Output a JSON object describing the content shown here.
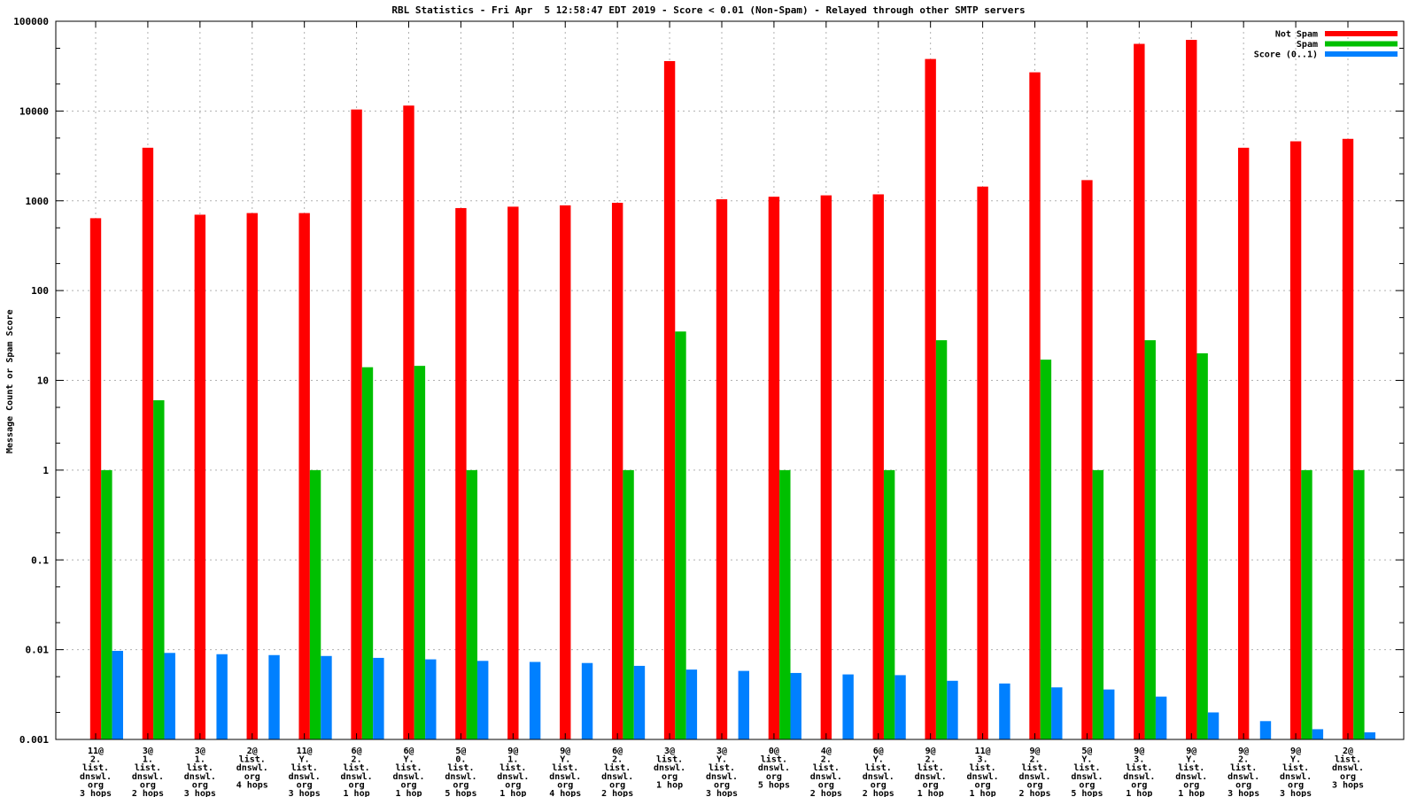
{
  "title": "RBL Statistics - Fri Apr  5 12:58:47 EDT 2019 - Score < 0.01 (Non-Spam) - Relayed through other SMTP servers",
  "chart_data": {
    "type": "bar",
    "title": "RBL Statistics - Fri Apr  5 12:58:47 EDT 2019 - Score < 0.01 (Non-Spam) - Relayed through other SMTP servers",
    "xlabel": "",
    "ylabel": "Message Count or Spam Score",
    "yscale": "log",
    "ylim": [
      0.001,
      100000
    ],
    "ytick_labels": [
      "0.001",
      "0.01",
      "0.1",
      "1",
      "10",
      "100",
      "1000",
      "10000",
      "100000"
    ],
    "ytick_values": [
      0.001,
      0.01,
      0.1,
      1,
      10,
      100,
      1000,
      10000,
      100000
    ],
    "grid": true,
    "legend_position": "top-right-inside",
    "axis_color": "#000000",
    "grid_color": "#b0b0b0",
    "categories": [
      [
        "11@",
        "2.",
        "list.",
        "dnswl.",
        "org",
        "3 hops"
      ],
      [
        "3@",
        "1.",
        "list.",
        "dnswl.",
        "org",
        "2 hops"
      ],
      [
        "3@",
        "1.",
        "list.",
        "dnswl.",
        "org",
        "3 hops"
      ],
      [
        "2@",
        "list.",
        "dnswl.",
        "org",
        "4 hops"
      ],
      [
        "11@",
        "Y.",
        "list.",
        "dnswl.",
        "org",
        "3 hops"
      ],
      [
        "6@",
        "2.",
        "list.",
        "dnswl.",
        "org",
        "1 hop"
      ],
      [
        "6@",
        "Y.",
        "list.",
        "dnswl.",
        "org",
        "1 hop"
      ],
      [
        "5@",
        "0.",
        "list.",
        "dnswl.",
        "org",
        "5 hops"
      ],
      [
        "9@",
        "1.",
        "list.",
        "dnswl.",
        "org",
        "1 hop"
      ],
      [
        "9@",
        "Y.",
        "list.",
        "dnswl.",
        "org",
        "4 hops"
      ],
      [
        "6@",
        "2.",
        "list.",
        "dnswl.",
        "org",
        "2 hops"
      ],
      [
        "3@",
        "list.",
        "dnswl.",
        "org",
        "1 hop"
      ],
      [
        "3@",
        "Y.",
        "list.",
        "dnswl.",
        "org",
        "3 hops"
      ],
      [
        "0@",
        "list.",
        "dnswl.",
        "org",
        "5 hops"
      ],
      [
        "4@",
        "2.",
        "list.",
        "dnswl.",
        "org",
        "2 hops"
      ],
      [
        "6@",
        "Y.",
        "list.",
        "dnswl.",
        "org",
        "2 hops"
      ],
      [
        "9@",
        "2.",
        "list.",
        "dnswl.",
        "org",
        "1 hop"
      ],
      [
        "11@",
        "3.",
        "list.",
        "dnswl.",
        "org",
        "1 hop"
      ],
      [
        "9@",
        "2.",
        "list.",
        "dnswl.",
        "org",
        "2 hops"
      ],
      [
        "5@",
        "Y.",
        "list.",
        "dnswl.",
        "org",
        "5 hops"
      ],
      [
        "9@",
        "3.",
        "list.",
        "dnswl.",
        "org",
        "1 hop"
      ],
      [
        "9@",
        "Y.",
        "list.",
        "dnswl.",
        "org",
        "1 hop"
      ],
      [
        "9@",
        "2.",
        "list.",
        "dnswl.",
        "org",
        "3 hops"
      ],
      [
        "9@",
        "Y.",
        "list.",
        "dnswl.",
        "org",
        "3 hops"
      ],
      [
        "2@",
        "list.",
        "dnswl.",
        "org",
        "3 hops"
      ]
    ],
    "series": [
      {
        "name": "Not Spam",
        "color": "#ff0000",
        "values": [
          640,
          3900,
          700,
          730,
          730,
          10400,
          11500,
          830,
          860,
          890,
          950,
          36000,
          1040,
          1110,
          1150,
          1180,
          38000,
          1440,
          27000,
          1700,
          56000,
          62000,
          3900,
          4600,
          4900
        ]
      },
      {
        "name": "Spam",
        "color": "#00bf00",
        "values": [
          1,
          6,
          null,
          null,
          1,
          14,
          14.5,
          1,
          null,
          null,
          1,
          35,
          null,
          1,
          null,
          1,
          28,
          null,
          17,
          1,
          28,
          20,
          null,
          1,
          1
        ]
      },
      {
        "name": "Score (0..1)",
        "color": "#0080ff",
        "values": [
          0.0097,
          0.0092,
          0.0089,
          0.0087,
          0.0085,
          0.0081,
          0.0078,
          0.0075,
          0.0073,
          0.0071,
          0.0066,
          0.006,
          0.0058,
          0.0055,
          0.0053,
          0.0052,
          0.0045,
          0.0042,
          0.0038,
          0.0036,
          0.003,
          0.002,
          0.0016,
          0.0013,
          0.0012
        ]
      }
    ]
  }
}
